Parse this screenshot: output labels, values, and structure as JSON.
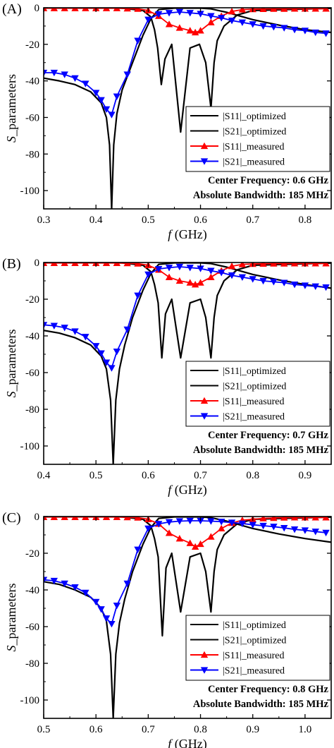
{
  "colors": {
    "optimized": "#000000",
    "s11_measured": "#ff0000",
    "s21_measured": "#0000ff"
  },
  "chart_data": [
    {
      "type": "line",
      "panel_label": "(A)",
      "xlabel_f": "f",
      "xlabel_unit": " (GHz)",
      "ylabel_s": "S",
      "ylabel_rest": "_parameters",
      "xlim": [
        0.3,
        0.85
      ],
      "ylim": [
        -110,
        0
      ],
      "xticks": [
        0.3,
        0.4,
        0.5,
        0.6,
        0.7,
        0.8
      ],
      "xtick_labels": [
        "0.3",
        "0.4",
        "0.5",
        "0.6",
        "0.7",
        "0.8"
      ],
      "yticks": [
        0,
        -20,
        -40,
        -60,
        -80,
        -100
      ],
      "ytick_labels": [
        "0",
        "-20",
        "-40",
        "-60",
        "-80",
        "-100"
      ],
      "legend": [
        "|S11|_optimized",
        "|S21|_optimized",
        "|S11|_measured",
        "|S21|_measured"
      ],
      "legend_position": "lower-right",
      "annotation_lines": [
        "Center Frequency: 0.6 GHz",
        "Absolute Bandwidth: 185 MHz"
      ],
      "series": [
        {
          "name": "|S11|_optimized",
          "style": "optimized",
          "marker": "none",
          "x": [
            0.3,
            0.4,
            0.45,
            0.49,
            0.505,
            0.512,
            0.518,
            0.525,
            0.532,
            0.545,
            0.562,
            0.58,
            0.598,
            0.61,
            0.62,
            0.626,
            0.632,
            0.645,
            0.67,
            0.7,
            0.85
          ],
          "y": [
            0,
            0,
            -0.2,
            -1.5,
            -5,
            -12,
            -22,
            -42,
            -28,
            -20,
            -68,
            -22,
            -20,
            -30,
            -55,
            -30,
            -18,
            -10,
            -4,
            -1.5,
            -0.3
          ]
        },
        {
          "name": "|S21|_optimized",
          "style": "optimized",
          "marker": "none",
          "x": [
            0.3,
            0.33,
            0.36,
            0.39,
            0.41,
            0.42,
            0.426,
            0.43,
            0.434,
            0.44,
            0.45,
            0.47,
            0.49,
            0.505,
            0.52,
            0.55,
            0.6,
            0.62,
            0.65,
            0.7,
            0.75,
            0.8,
            0.85
          ],
          "y": [
            -38.5,
            -40,
            -42,
            -46,
            -52,
            -60,
            -75,
            -110,
            -75,
            -58,
            -45,
            -30,
            -15,
            -6,
            -1,
            -0.2,
            -0.2,
            -0.6,
            -2.5,
            -6.5,
            -9.5,
            -12,
            -13.5
          ]
        },
        {
          "name": "|S11|_measured",
          "style": "s11_measured",
          "marker": "triangle-up",
          "x": [
            0.3,
            0.32,
            0.34,
            0.36,
            0.38,
            0.4,
            0.42,
            0.44,
            0.46,
            0.48,
            0.5,
            0.52,
            0.54,
            0.56,
            0.58,
            0.59,
            0.6,
            0.62,
            0.64,
            0.66,
            0.68,
            0.7,
            0.72,
            0.74,
            0.76,
            0.78,
            0.8,
            0.82,
            0.84
          ],
          "y": [
            -0.3,
            -0.3,
            -0.3,
            -0.3,
            -0.3,
            -0.3,
            -0.3,
            -0.3,
            -0.4,
            -0.6,
            -1.5,
            -4.5,
            -9,
            -11,
            -12.5,
            -13.5,
            -12.5,
            -8,
            -4.5,
            -2,
            -1,
            -0.8,
            -0.7,
            -0.6,
            -0.6,
            -0.5,
            -0.5,
            -0.5,
            -0.5
          ]
        },
        {
          "name": "|S21|_measured",
          "style": "s21_measured",
          "marker": "triangle-down",
          "x": [
            0.3,
            0.32,
            0.34,
            0.36,
            0.38,
            0.4,
            0.41,
            0.42,
            0.43,
            0.44,
            0.46,
            0.48,
            0.5,
            0.52,
            0.54,
            0.56,
            0.58,
            0.6,
            0.62,
            0.64,
            0.66,
            0.68,
            0.7,
            0.72,
            0.74,
            0.76,
            0.78,
            0.8,
            0.82,
            0.84
          ],
          "y": [
            -35.5,
            -35.5,
            -36.5,
            -38.5,
            -41.5,
            -46.5,
            -50.5,
            -55.5,
            -58.5,
            -48.5,
            -36.5,
            -18,
            -6.5,
            -3.5,
            -2.8,
            -2.3,
            -2.8,
            -3.3,
            -4.5,
            -5.5,
            -7,
            -8,
            -9,
            -10,
            -10.5,
            -11,
            -12,
            -12.5,
            -13.5,
            -14
          ]
        }
      ]
    },
    {
      "type": "line",
      "panel_label": "(B)",
      "xlabel_f": "f",
      "xlabel_unit": " (GHz)",
      "ylabel_s": "S",
      "ylabel_rest": "_parameters",
      "xlim": [
        0.4,
        0.95
      ],
      "ylim": [
        -110,
        0
      ],
      "xticks": [
        0.4,
        0.5,
        0.6,
        0.7,
        0.8,
        0.9
      ],
      "xtick_labels": [
        "0.4",
        "0.5",
        "0.6",
        "0.7",
        "0.8",
        "0.9"
      ],
      "yticks": [
        0,
        -20,
        -40,
        -60,
        -80,
        -100
      ],
      "ytick_labels": [
        "0",
        "-20",
        "-40",
        "-60",
        "-80",
        "-100"
      ],
      "legend": [
        "|S11|_optimized",
        "|S21|_optimized",
        "|S11|_measured",
        "|S21|_measured"
      ],
      "legend_position": "lower-right",
      "annotation_lines": [
        "Center Frequency: 0.7 GHz",
        "Absolute Bandwidth: 185 MHz"
      ],
      "series": [
        {
          "name": "|S11|_optimized",
          "style": "optimized",
          "marker": "none",
          "x": [
            0.4,
            0.5,
            0.55,
            0.59,
            0.605,
            0.612,
            0.619,
            0.626,
            0.633,
            0.645,
            0.662,
            0.68,
            0.7,
            0.71,
            0.72,
            0.726,
            0.732,
            0.745,
            0.77,
            0.8,
            0.95
          ],
          "y": [
            0,
            0,
            -0.2,
            -1.5,
            -5,
            -12,
            -22,
            -52,
            -28,
            -20,
            -52,
            -22,
            -20,
            -30,
            -52,
            -30,
            -18,
            -10,
            -4,
            -1.5,
            -0.3
          ]
        },
        {
          "name": "|S21|_optimized",
          "style": "optimized",
          "marker": "none",
          "x": [
            0.4,
            0.43,
            0.46,
            0.49,
            0.51,
            0.52,
            0.528,
            0.533,
            0.538,
            0.545,
            0.555,
            0.57,
            0.59,
            0.605,
            0.62,
            0.65,
            0.7,
            0.72,
            0.75,
            0.8,
            0.85,
            0.9,
            0.95
          ],
          "y": [
            -37,
            -38.5,
            -41,
            -45,
            -51,
            -58,
            -75,
            -110,
            -75,
            -58,
            -45,
            -30,
            -15,
            -6,
            -1,
            -0.2,
            -0.2,
            -0.6,
            -2.5,
            -6.5,
            -9.5,
            -12,
            -14
          ]
        },
        {
          "name": "|S11|_measured",
          "style": "s11_measured",
          "marker": "triangle-up",
          "x": [
            0.4,
            0.42,
            0.44,
            0.46,
            0.48,
            0.5,
            0.52,
            0.54,
            0.56,
            0.58,
            0.6,
            0.62,
            0.64,
            0.66,
            0.68,
            0.69,
            0.7,
            0.72,
            0.74,
            0.76,
            0.78,
            0.8,
            0.82,
            0.84,
            0.86,
            0.88,
            0.9,
            0.92,
            0.94
          ],
          "y": [
            -0.3,
            -0.3,
            -0.3,
            -0.3,
            -0.3,
            -0.3,
            -0.3,
            -0.3,
            -0.4,
            -0.6,
            -1.5,
            -4,
            -8,
            -10,
            -11,
            -12,
            -11,
            -8,
            -4.5,
            -2,
            -1,
            -0.8,
            -0.7,
            -0.6,
            -0.6,
            -0.5,
            -0.5,
            -0.5,
            -0.5
          ]
        },
        {
          "name": "|S21|_measured",
          "style": "s21_measured",
          "marker": "triangle-down",
          "x": [
            0.4,
            0.42,
            0.44,
            0.46,
            0.48,
            0.5,
            0.51,
            0.52,
            0.53,
            0.54,
            0.56,
            0.58,
            0.6,
            0.62,
            0.64,
            0.66,
            0.68,
            0.7,
            0.72,
            0.74,
            0.76,
            0.78,
            0.8,
            0.82,
            0.84,
            0.86,
            0.88,
            0.9,
            0.92,
            0.94
          ],
          "y": [
            -34,
            -34.5,
            -35.5,
            -37.5,
            -40.5,
            -45.5,
            -49.5,
            -54.5,
            -57.5,
            -48.5,
            -36.5,
            -18,
            -6.5,
            -3.5,
            -2.8,
            -2.3,
            -2.8,
            -3.3,
            -4.5,
            -5.5,
            -7,
            -8,
            -9,
            -10,
            -10.5,
            -11,
            -12,
            -12.5,
            -13,
            -13.5
          ]
        }
      ]
    },
    {
      "type": "line",
      "panel_label": "(C)",
      "xlabel_f": "f",
      "xlabel_unit": " (GHz)",
      "ylabel_s": "S",
      "ylabel_rest": "_parameters",
      "xlim": [
        0.5,
        1.05
      ],
      "ylim": [
        -110,
        0
      ],
      "xticks": [
        0.5,
        0.6,
        0.7,
        0.8,
        0.9,
        1.0
      ],
      "xtick_labels": [
        "0.5",
        "0.6",
        "0.7",
        "0.8",
        "0.9",
        "1.0"
      ],
      "yticks": [
        0,
        -20,
        -40,
        -60,
        -80,
        -100
      ],
      "ytick_labels": [
        "0",
        "-20",
        "-40",
        "-60",
        "-80",
        "-100"
      ],
      "legend": [
        "|S11|_optimized",
        "|S21|_optimized",
        "|S11|_measured",
        "|S21|_measured"
      ],
      "legend_position": "lower-right",
      "annotation_lines": [
        "Center Frequency: 0.8 GHz",
        "Absolute Bandwidth: 185 MHz"
      ],
      "series": [
        {
          "name": "|S11|_optimized",
          "style": "optimized",
          "marker": "none",
          "x": [
            0.5,
            0.6,
            0.65,
            0.69,
            0.705,
            0.712,
            0.719,
            0.727,
            0.734,
            0.745,
            0.762,
            0.78,
            0.8,
            0.81,
            0.82,
            0.826,
            0.832,
            0.845,
            0.87,
            0.9,
            1.05
          ],
          "y": [
            0,
            0,
            -0.2,
            -1.5,
            -5,
            -12,
            -22,
            -65,
            -28,
            -20,
            -52,
            -22,
            -20,
            -30,
            -52,
            -30,
            -18,
            -10,
            -4,
            -1.5,
            -0.3
          ]
        },
        {
          "name": "|S21|_optimized",
          "style": "optimized",
          "marker": "none",
          "x": [
            0.5,
            0.53,
            0.56,
            0.59,
            0.61,
            0.62,
            0.628,
            0.633,
            0.638,
            0.645,
            0.655,
            0.67,
            0.69,
            0.705,
            0.72,
            0.75,
            0.8,
            0.82,
            0.85,
            0.9,
            0.95,
            1.0,
            1.05
          ],
          "y": [
            -35.5,
            -37,
            -40,
            -44,
            -50,
            -57,
            -75,
            -110,
            -75,
            -58,
            -45,
            -30,
            -15,
            -6,
            -1,
            -0.2,
            -0.2,
            -0.6,
            -2.5,
            -6.5,
            -9.5,
            -12,
            -14
          ]
        },
        {
          "name": "|S11|_measured",
          "style": "s11_measured",
          "marker": "triangle-up",
          "x": [
            0.5,
            0.52,
            0.54,
            0.56,
            0.58,
            0.6,
            0.62,
            0.64,
            0.66,
            0.68,
            0.7,
            0.72,
            0.74,
            0.76,
            0.78,
            0.79,
            0.8,
            0.82,
            0.84,
            0.86,
            0.88,
            0.9,
            0.92,
            0.94,
            0.96,
            0.98,
            1.0,
            1.02,
            1.04
          ],
          "y": [
            -0.3,
            -0.3,
            -0.3,
            -0.3,
            -0.3,
            -0.3,
            -0.3,
            -0.3,
            -0.4,
            -0.6,
            -1.5,
            -4,
            -9,
            -12,
            -14.5,
            -16.5,
            -15,
            -11,
            -6.5,
            -3.5,
            -2,
            -1.5,
            -1,
            -0.8,
            -0.6,
            -0.5,
            -0.5,
            -0.5,
            -0.5
          ]
        },
        {
          "name": "|S21|_measured",
          "style": "s21_measured",
          "marker": "triangle-down",
          "x": [
            0.5,
            0.52,
            0.54,
            0.56,
            0.58,
            0.6,
            0.61,
            0.62,
            0.63,
            0.64,
            0.66,
            0.68,
            0.7,
            0.72,
            0.74,
            0.76,
            0.78,
            0.8,
            0.82,
            0.84,
            0.86,
            0.88,
            0.9,
            0.92,
            0.94,
            0.96,
            0.98,
            1.0,
            1.02,
            1.04
          ],
          "y": [
            -34.5,
            -35,
            -36.5,
            -38.5,
            -41.5,
            -46.5,
            -50.5,
            -55.5,
            -58.5,
            -48.5,
            -36.5,
            -18,
            -6.5,
            -4,
            -3,
            -2.5,
            -2.3,
            -2.3,
            -2.5,
            -2.8,
            -3.3,
            -3.8,
            -4.5,
            -5,
            -5.5,
            -6.2,
            -7,
            -7.5,
            -8.2,
            -8.8
          ]
        }
      ]
    }
  ]
}
